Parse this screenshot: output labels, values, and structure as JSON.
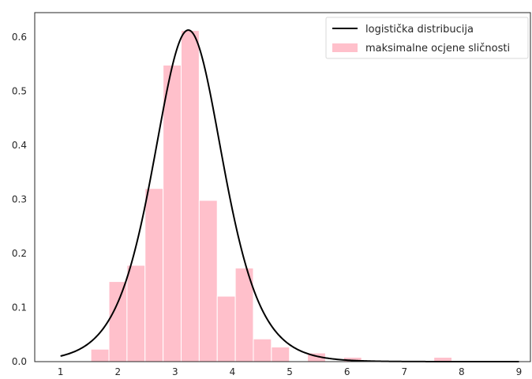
{
  "chart_data": {
    "type": "bar",
    "title": "",
    "xlabel": "",
    "ylabel": "",
    "xlim": [
      0.55,
      9.2
    ],
    "ylim": [
      0,
      0.645
    ],
    "grid": false,
    "legend_position": "top-right",
    "x_ticks": [
      1,
      2,
      3,
      4,
      5,
      6,
      7,
      8,
      9
    ],
    "y_ticks": [
      0.0,
      0.1,
      0.2,
      0.3,
      0.4,
      0.5,
      0.6
    ],
    "x_tick_labels": [
      "1",
      "2",
      "3",
      "4",
      "5",
      "6",
      "7",
      "8",
      "9"
    ],
    "y_tick_labels": [
      "0.0",
      "0.1",
      "0.2",
      "0.3",
      "0.4",
      "0.5",
      "0.6"
    ],
    "histogram": {
      "name": "maksimalne ocjene sličnosti",
      "color": "#ffc0cb",
      "bin_edges": [
        1.53,
        1.845,
        2.16,
        2.475,
        2.79,
        3.105,
        3.42,
        3.735,
        4.05,
        4.365,
        4.68,
        4.995,
        5.31,
        5.625,
        5.94,
        6.255,
        6.57,
        6.885,
        7.2,
        7.515,
        7.83
      ],
      "densities": [
        0.023,
        0.148,
        0.178,
        0.32,
        0.548,
        0.612,
        0.298,
        0.121,
        0.173,
        0.042,
        0.027,
        0.0,
        0.016,
        0.0,
        0.008,
        0.0,
        0.0,
        0.0,
        0.0,
        0.008
      ]
    },
    "curve": {
      "name": "logistička distribucija",
      "color": "#000000",
      "distribution": "logistic",
      "loc": 3.23,
      "scale": 0.408,
      "x_range": [
        1.0,
        9.0
      ]
    }
  }
}
